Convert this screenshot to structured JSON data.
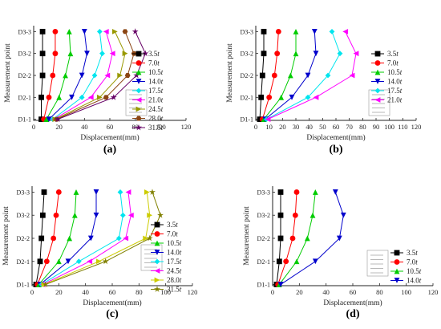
{
  "figure": {
    "panel_labels": [
      "(a)",
      "(b)",
      "(c)",
      "(d)"
    ]
  },
  "chart_data": [
    {
      "panel": "(a)",
      "type": "line",
      "xlabel": "Displacement(mm)",
      "ylabel": "Measurement point",
      "xlim": [
        0,
        120
      ],
      "xticks": [
        0,
        20,
        40,
        60,
        80,
        100,
        120
      ],
      "categories": [
        "D1-1",
        "D2-1",
        "D2-2",
        "D3-2",
        "D3-3"
      ],
      "legend": "right",
      "series": [
        {
          "name": "3.5t",
          "color": "#000000",
          "marker": "square",
          "values": [
            6,
            6,
            7,
            7,
            7
          ]
        },
        {
          "name": "7.0t",
          "color": "#ff0000",
          "marker": "circle",
          "values": [
            8,
            12,
            15,
            17,
            17
          ]
        },
        {
          "name": "10.5t",
          "color": "#00cc00",
          "marker": "triangle-up",
          "values": [
            10,
            20,
            25,
            29,
            28
          ]
        },
        {
          "name": "14.0t",
          "color": "#0000cc",
          "marker": "triangle-down",
          "values": [
            12,
            30,
            38,
            42,
            40
          ]
        },
        {
          "name": "17.5t",
          "color": "#00e5ee",
          "marker": "diamond",
          "values": [
            15,
            38,
            48,
            54,
            52
          ]
        },
        {
          "name": "21.0t",
          "color": "#ff00ff",
          "marker": "triangle-left",
          "values": [
            16,
            45,
            58,
            62,
            57
          ]
        },
        {
          "name": "24.5t",
          "color": "#999900",
          "marker": "triangle-right",
          "values": [
            17,
            52,
            68,
            72,
            64
          ]
        },
        {
          "name": "28.0t",
          "color": "#8b4513",
          "marker": "hexagon",
          "values": [
            18,
            57,
            74,
            79,
            72
          ]
        },
        {
          "name": "31.5t",
          "color": "#660066",
          "marker": "star",
          "values": [
            19,
            63,
            81,
            88,
            80
          ]
        }
      ]
    },
    {
      "panel": "(b)",
      "type": "line",
      "xlabel": "Displacement(mm)",
      "ylabel": "Measurement point",
      "xlim": [
        0,
        120
      ],
      "xticks": [
        0,
        10,
        20,
        30,
        40,
        50,
        60,
        70,
        80,
        90,
        100,
        110,
        120
      ],
      "categories": [
        "D1-1",
        "D2-1",
        "D2-2",
        "D3-2",
        "D3-3"
      ],
      "legend": "right",
      "series": [
        {
          "name": "3.5t",
          "color": "#000000",
          "marker": "square",
          "values": [
            3,
            4,
            5,
            6,
            6
          ]
        },
        {
          "name": "7.0t",
          "color": "#ff0000",
          "marker": "circle",
          "values": [
            5,
            10,
            14,
            16,
            17
          ]
        },
        {
          "name": "10.5t",
          "color": "#00cc00",
          "marker": "triangle-up",
          "values": [
            6,
            19,
            26,
            30,
            30
          ]
        },
        {
          "name": "14.0t",
          "color": "#0000cc",
          "marker": "triangle-down",
          "values": [
            7,
            27,
            39,
            45,
            44
          ]
        },
        {
          "name": "17.5t",
          "color": "#00e5ee",
          "marker": "diamond",
          "values": [
            8,
            39,
            54,
            63,
            57
          ]
        },
        {
          "name": "21.0t",
          "color": "#ff00ff",
          "marker": "triangle-left",
          "values": [
            9,
            45,
            72,
            75,
            67
          ]
        }
      ]
    },
    {
      "panel": "(c)",
      "type": "line",
      "xlabel": "Displacement(mm)",
      "ylabel": "Measurement point",
      "xlim": [
        0,
        120
      ],
      "xticks": [
        0,
        20,
        40,
        60,
        80,
        100,
        120
      ],
      "categories": [
        "D1-1",
        "D2-1",
        "D2-2",
        "D3-2",
        "D3-3"
      ],
      "legend": "right",
      "series": [
        {
          "name": "3.5t",
          "color": "#000000",
          "marker": "square",
          "values": [
            3,
            6,
            7,
            8,
            9
          ]
        },
        {
          "name": "7.0t",
          "color": "#ff0000",
          "marker": "circle",
          "values": [
            4,
            11,
            16,
            18,
            20
          ]
        },
        {
          "name": "10.5t",
          "color": "#00cc00",
          "marker": "triangle-up",
          "values": [
            5,
            20,
            28,
            32,
            33
          ]
        },
        {
          "name": "14.0t",
          "color": "#0000cc",
          "marker": "triangle-down",
          "values": [
            6,
            27,
            44,
            48,
            48
          ]
        },
        {
          "name": "17.5t",
          "color": "#00e5ee",
          "marker": "diamond",
          "values": [
            7,
            35,
            65,
            68,
            66
          ]
        },
        {
          "name": "24.5t",
          "color": "#ff00ff",
          "marker": "triangle-left",
          "values": [
            8,
            43,
            70,
            74,
            72
          ]
        },
        {
          "name": "28.0t",
          "color": "#cccc00",
          "marker": "triangle-right",
          "values": [
            9,
            50,
            85,
            88,
            86
          ]
        },
        {
          "name": "31.5t",
          "color": "#808000",
          "marker": "star",
          "values": [
            10,
            55,
            88,
            96,
            90
          ]
        }
      ]
    },
    {
      "panel": "(d)",
      "type": "line",
      "xlabel": "Displacement(mm)",
      "ylabel": "Measurement point",
      "xlim": [
        0,
        120
      ],
      "xticks": [
        0,
        20,
        40,
        60,
        80,
        100,
        120
      ],
      "categories": [
        "D1-1",
        "D2-1",
        "D2-2",
        "D3-2",
        "D3-3"
      ],
      "legend": "right",
      "series": [
        {
          "name": "3.5t",
          "color": "#000000",
          "marker": "square",
          "values": [
            3,
            5,
            6,
            6,
            6
          ]
        },
        {
          "name": "7.0t",
          "color": "#ff0000",
          "marker": "circle",
          "values": [
            4,
            10,
            15,
            17,
            18
          ]
        },
        {
          "name": "10.5t",
          "color": "#00cc00",
          "marker": "triangle-up",
          "values": [
            5,
            18,
            26,
            30,
            32
          ]
        },
        {
          "name": "14.0t",
          "color": "#0000cc",
          "marker": "triangle-down",
          "values": [
            6,
            32,
            50,
            53,
            47
          ]
        }
      ]
    }
  ]
}
